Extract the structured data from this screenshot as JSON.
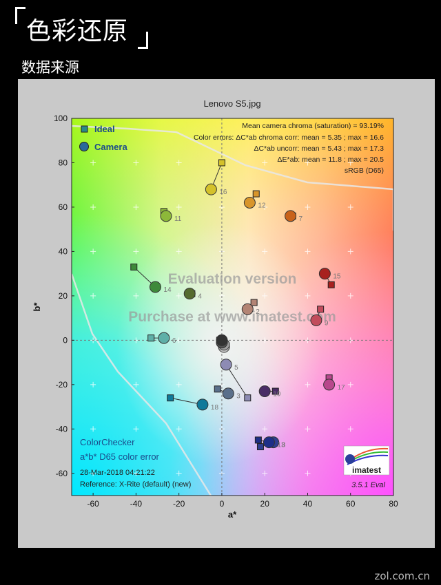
{
  "heading": "色彩还原",
  "subheading": "数据来源",
  "site_watermark": "zol.com.cn",
  "chart_data": {
    "type": "scatter",
    "title": "Lenovo S5.jpg",
    "xlabel": "a*",
    "ylabel": "b*",
    "xlim": [
      -70,
      80
    ],
    "ylim": [
      -70,
      100
    ],
    "xticks": [
      -60,
      -40,
      -20,
      0,
      20,
      40,
      60,
      80
    ],
    "yticks": [
      -60,
      -40,
      -20,
      0,
      20,
      40,
      60,
      80,
      100
    ],
    "grid": true,
    "legend_position": "top-left",
    "legend": [
      "Ideal",
      "Camera"
    ],
    "stats": [
      "Mean camera chroma (saturation) = 93.19%",
      "Color errors: ΔC*ab chroma corr:  mean = 5.35 ;  max = 16.6",
      "ΔC*ab uncorr:  mean = 5.43 ;  max = 17.3",
      "ΔE*ab:  mean = 11.8 ;  max = 20.5",
      "sRGB (D65)"
    ],
    "watermark_lines": [
      "Evaluation version",
      "Purchase at www.imatest.com"
    ],
    "bottom_left_text": [
      "ColorChecker",
      "a*b* D65 color error"
    ],
    "timestamp": "28-Mar-2018 04:21:22",
    "reference": "Reference: X-Rite (default) (new)",
    "logo_text": "imatest",
    "version": "3.5.1  Eval",
    "patches": [
      {
        "id": 1,
        "ideal": [
          -1,
          0
        ],
        "camera": [
          0,
          0
        ],
        "color": "#2b2b2b"
      },
      {
        "id": 2,
        "ideal": [
          15,
          17
        ],
        "camera": [
          12,
          14
        ],
        "color": "#b38474"
      },
      {
        "id": 3,
        "ideal": [
          -2,
          -22
        ],
        "camera": [
          3,
          -24
        ],
        "color": "#5a6f8a"
      },
      {
        "id": 4,
        "ideal": [
          -14,
          21
        ],
        "camera": [
          -15,
          21
        ],
        "color": "#556b2f"
      },
      {
        "id": 5,
        "ideal": [
          12,
          -26
        ],
        "camera": [
          2,
          -11
        ],
        "color": "#8d8bb4"
      },
      {
        "id": 6,
        "ideal": [
          -33,
          1
        ],
        "camera": [
          -27,
          1
        ],
        "color": "#5fb0a8"
      },
      {
        "id": 7,
        "ideal": [
          33,
          56
        ],
        "camera": [
          32,
          56
        ],
        "color": "#c8621a"
      },
      {
        "id": 8,
        "ideal": [
          18,
          -48
        ],
        "camera": [
          24,
          -46
        ],
        "color": "#2f3f90"
      },
      {
        "id": 9,
        "ideal": [
          46,
          14
        ],
        "camera": [
          44,
          9
        ],
        "color": "#c24c5c"
      },
      {
        "id": 10,
        "ideal": [
          25,
          -23
        ],
        "camera": [
          20,
          -23
        ],
        "color": "#4a2c66"
      },
      {
        "id": 11,
        "ideal": [
          -27,
          58
        ],
        "camera": [
          -26,
          56
        ],
        "color": "#8db83a"
      },
      {
        "id": 12,
        "ideal": [
          16,
          66
        ],
        "camera": [
          13,
          62
        ],
        "color": "#d8952a"
      },
      {
        "id": 13,
        "ideal": [
          17,
          -45
        ],
        "camera": [
          22,
          -46
        ],
        "color": "#1e2f88"
      },
      {
        "id": 14,
        "ideal": [
          -41,
          33
        ],
        "camera": [
          -31,
          24
        ],
        "color": "#3e8a3a"
      },
      {
        "id": 15,
        "ideal": [
          51,
          25
        ],
        "camera": [
          48,
          30
        ],
        "color": "#a8211f"
      },
      {
        "id": 16,
        "ideal": [
          0,
          80
        ],
        "camera": [
          -5,
          68
        ],
        "color": "#d4c12a"
      },
      {
        "id": 17,
        "ideal": [
          50,
          -17
        ],
        "camera": [
          50,
          -20
        ],
        "color": "#b8478c"
      },
      {
        "id": 18,
        "ideal": [
          -24,
          -26
        ],
        "camera": [
          -9,
          -29
        ],
        "color": "#0f7a9a"
      },
      {
        "id": 19,
        "ideal": [
          0,
          -2
        ],
        "camera": [
          1,
          -2
        ],
        "color": "#ececec"
      },
      {
        "id": 20,
        "ideal": [
          0,
          -2
        ],
        "camera": [
          1,
          -3
        ],
        "color": "#c8c8c8"
      },
      {
        "id": 21,
        "ideal": [
          0,
          -1
        ],
        "camera": [
          1,
          -2
        ],
        "color": "#a0a0a0"
      },
      {
        "id": 22,
        "ideal": [
          0,
          -1
        ],
        "camera": [
          0,
          -1
        ],
        "color": "#7a7a7a"
      },
      {
        "id": 23,
        "ideal": [
          0,
          0
        ],
        "camera": [
          0,
          -1
        ],
        "color": "#555555"
      },
      {
        "id": 24,
        "ideal": [
          0,
          0
        ],
        "camera": [
          0,
          0
        ],
        "color": "#333333"
      }
    ]
  }
}
